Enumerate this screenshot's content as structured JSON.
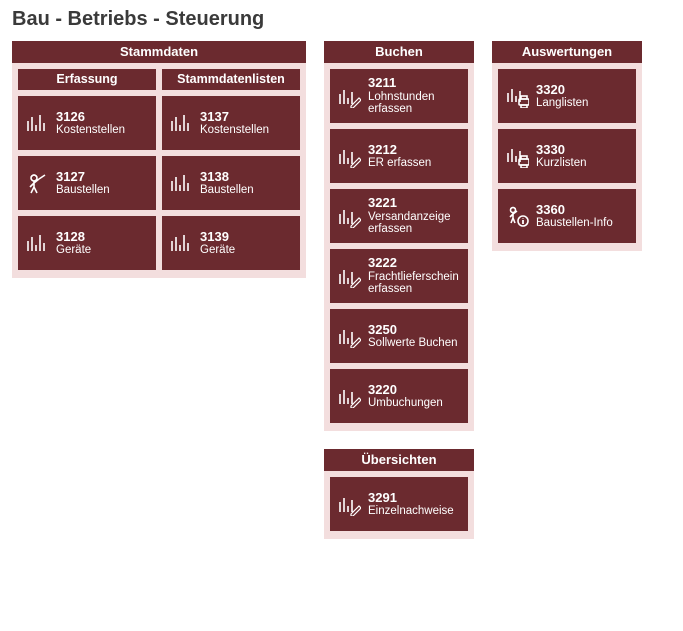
{
  "title": "Bau - Betriebs - Steuerung",
  "colors": {
    "panel_bg": "#f3dede",
    "tile_bg": "#6b2a2f",
    "text_light": "#ffffff",
    "page_bg": "#ffffff",
    "title_color": "#3a3a3a"
  },
  "stammdaten": {
    "header": "Stammdaten",
    "erfassung": {
      "header": "Erfassung",
      "items": [
        {
          "code": "3126",
          "label": "Kostenstellen",
          "icon": "bars"
        },
        {
          "code": "3127",
          "label": "Baustellen",
          "icon": "worker"
        },
        {
          "code": "3128",
          "label": "Geräte",
          "icon": "bars"
        }
      ]
    },
    "listen": {
      "header": "Stammdatenlisten",
      "items": [
        {
          "code": "3137",
          "label": "Kostenstellen",
          "icon": "bars"
        },
        {
          "code": "3138",
          "label": "Baustellen",
          "icon": "bars"
        },
        {
          "code": "3139",
          "label": "Geräte",
          "icon": "bars"
        }
      ]
    }
  },
  "buchen": {
    "header": "Buchen",
    "items": [
      {
        "code": "3211",
        "label": "Lohnstunden erfassen",
        "icon": "bars-edit"
      },
      {
        "code": "3212",
        "label": "ER erfassen",
        "icon": "bars-edit"
      },
      {
        "code": "3221",
        "label": "Versandanzeige erfassen",
        "icon": "bars-edit"
      },
      {
        "code": "3222",
        "label": "Frachtlieferschein erfassen",
        "icon": "bars-edit"
      },
      {
        "code": "3250",
        "label": "Sollwerte Buchen",
        "icon": "bars-edit"
      },
      {
        "code": "3220",
        "label": "Umbuchungen",
        "icon": "bars-edit"
      }
    ]
  },
  "uebersichten": {
    "header": "Übersichten",
    "items": [
      {
        "code": "3291",
        "label": "Einzelnachweise",
        "icon": "bars-edit"
      }
    ]
  },
  "auswertungen": {
    "header": "Auswertungen",
    "items": [
      {
        "code": "3320",
        "label": "Langlisten",
        "icon": "bars-print"
      },
      {
        "code": "3330",
        "label": "Kurzlisten",
        "icon": "bars-print"
      },
      {
        "code": "3360",
        "label": "Baustellen-Info",
        "icon": "worker-info"
      }
    ]
  }
}
